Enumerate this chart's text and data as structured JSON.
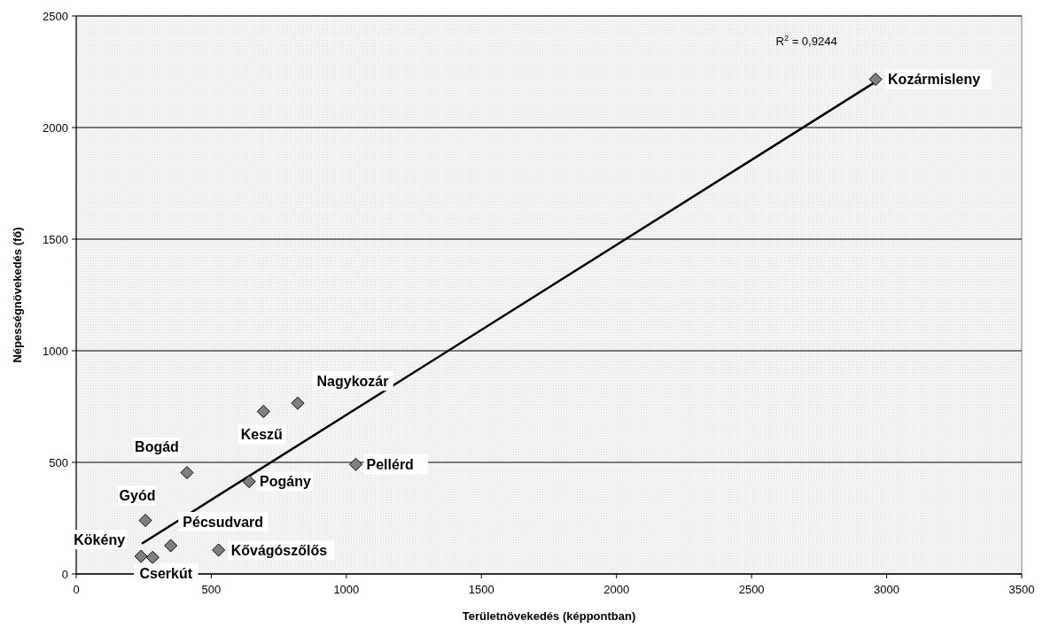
{
  "chart_data": {
    "type": "scatter",
    "xlabel": "Területnövekedés (képpontban)",
    "ylabel": "Népességnövekedés (fő)",
    "xlim": [
      0,
      3500
    ],
    "xticks": [
      0,
      500,
      1000,
      1500,
      2000,
      2500,
      3000,
      3500
    ],
    "ylim": [
      0,
      2500
    ],
    "yticks": [
      0,
      500,
      1000,
      1500,
      2000,
      2500
    ],
    "grid": "y",
    "series": [
      {
        "marker": "diamond",
        "color": "#808080",
        "x": [
          2959,
          820,
          693,
          1035,
          410,
          640,
          256,
          350,
          527,
          240,
          283
        ],
        "values": [
          2216,
          765,
          728,
          491,
          454,
          414,
          240,
          127,
          107,
          79,
          74
        ]
      },
      {
        "type": "line",
        "color": "#000000",
        "x": [
          243,
          2959
        ],
        "values": [
          136,
          2205
        ]
      }
    ],
    "annotations": [
      {
        "text": "Kozármisleny",
        "x": 2959,
        "y": 2216
      },
      {
        "text": "Nagykozár",
        "x": 820,
        "y": 765
      },
      {
        "text": "Keszű",
        "x": 693,
        "y": 728
      },
      {
        "text": "Pellérd",
        "x": 1035,
        "y": 491
      },
      {
        "text": "Bogád",
        "x": 410,
        "y": 454
      },
      {
        "text": "Pogány",
        "x": 640,
        "y": 414
      },
      {
        "text": "Gyód",
        "x": 256,
        "y": 240
      },
      {
        "text": "Pécsudvard",
        "x": 350,
        "y": 127
      },
      {
        "text": "Kővágószőlős",
        "x": 527,
        "y": 107
      },
      {
        "text": "Kökény",
        "x": 240,
        "y": 79
      },
      {
        "text": "Cserkút",
        "x": 283,
        "y": 74
      },
      "R$^{2}$ = 0,9244"
    ]
  }
}
